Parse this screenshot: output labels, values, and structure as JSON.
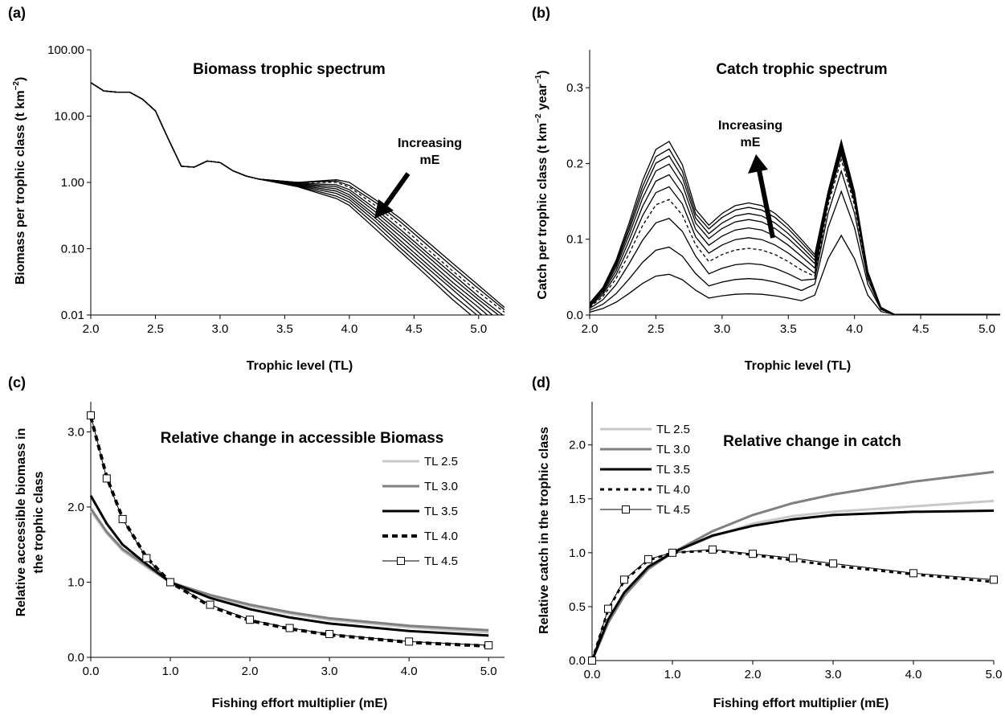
{
  "panels": {
    "a": {
      "label": "(a)",
      "chart_data": {
        "type": "line",
        "title": "Biomass trophic spectrum",
        "xlabel": "Trophic level (TL)",
        "ylabel_main": "Biomass per trophic class (t km",
        "ylabel_sup": "−2",
        "ylabel_end": ")",
        "yscale": "log",
        "xlim": [
          2.0,
          5.2
        ],
        "ylim": [
          0.01,
          100
        ],
        "xticks": [
          "2.0",
          "2.5",
          "3.0",
          "3.5",
          "4.0",
          "4.5",
          "5.0"
        ],
        "yticks": [
          "0.01",
          "0.10",
          "1.00",
          "10.00",
          "100.00"
        ],
        "annotation": [
          "Increasing",
          "mE"
        ],
        "shared_x": [
          2.0,
          2.1,
          2.2,
          2.3,
          2.4,
          2.5,
          2.6,
          2.7,
          2.8,
          2.9,
          3.0,
          3.1,
          3.2,
          3.3
        ],
        "shared_y": [
          32,
          24,
          23,
          23,
          18,
          12,
          4.5,
          1.75,
          1.7,
          2.1,
          2.0,
          1.5,
          1.25,
          1.12
        ],
        "tail_x": [
          3.3,
          3.6,
          3.9,
          4.0,
          4.2,
          4.4,
          4.6,
          4.8,
          5.0,
          5.2
        ],
        "curves": [
          [
            1.12,
            1.0,
            1.1,
            1.0,
            0.55,
            0.28,
            0.13,
            0.06,
            0.028,
            0.013
          ],
          [
            1.1,
            1.0,
            1.05,
            0.9,
            0.5,
            0.25,
            0.115,
            0.053,
            0.025,
            0.012
          ],
          [
            1.1,
            1.0,
            1.0,
            0.85,
            0.45,
            0.22,
            0.1,
            0.046,
            0.022,
            0.011
          ],
          [
            1.08,
            0.98,
            0.92,
            0.78,
            0.4,
            0.19,
            0.088,
            0.041,
            0.019,
            0.0095
          ],
          [
            1.07,
            0.96,
            0.86,
            0.72,
            0.36,
            0.17,
            0.078,
            0.036,
            0.017,
            0.0085
          ],
          [
            1.05,
            0.94,
            0.8,
            0.65,
            0.32,
            0.15,
            0.068,
            0.031,
            0.015,
            0.007
          ],
          [
            1.04,
            0.92,
            0.74,
            0.6,
            0.29,
            0.13,
            0.059,
            0.027,
            0.013,
            0.006
          ],
          [
            1.03,
            0.9,
            0.68,
            0.55,
            0.26,
            0.115,
            0.052,
            0.024,
            0.011,
            0.005
          ],
          [
            1.02,
            0.88,
            0.62,
            0.5,
            0.23,
            0.1,
            0.045,
            0.02,
            0.0095,
            0.0045
          ],
          [
            1.01,
            0.86,
            0.57,
            0.45,
            0.2,
            0.088,
            0.039,
            0.017,
            0.008,
            0.004
          ]
        ],
        "dashed_index": 2
      }
    },
    "b": {
      "label": "(b)",
      "chart_data": {
        "type": "line",
        "title": "Catch trophic spectrum",
        "xlabel": "Trophic level (TL)",
        "ylabel_main": "Catch per trophic class (t km",
        "ylabel_sup1": "−2",
        "ylabel_mid": " year",
        "ylabel_sup2": "−1",
        "ylabel_end": ")",
        "xlim": [
          2.0,
          5.1
        ],
        "ylim": [
          0,
          0.35
        ],
        "xticks": [
          "2.0",
          "2.5",
          "3.0",
          "3.5",
          "4.0",
          "4.5",
          "5.0"
        ],
        "yticks": [
          "0.0",
          "0.1",
          "0.2",
          "0.3"
        ],
        "annotation": [
          "Increasing",
          "mE"
        ],
        "x": [
          2.0,
          2.1,
          2.2,
          2.3,
          2.4,
          2.5,
          2.6,
          2.7,
          2.8,
          2.9,
          3.0,
          3.1,
          3.2,
          3.3,
          3.4,
          3.5,
          3.6,
          3.7,
          3.8,
          3.9,
          4.0,
          4.1,
          4.2,
          4.3,
          4.4,
          4.5,
          4.6,
          4.7,
          4.8,
          4.9,
          5.0,
          5.1
        ],
        "peaks": [
          {
            "p1": 0.054,
            "trough": 0.028,
            "p2": 0.105
          },
          {
            "p1": 0.09,
            "trough": 0.048,
            "p2": 0.163
          },
          {
            "p1": 0.128,
            "trough": 0.068,
            "p2": 0.19
          },
          {
            "p1": 0.153,
            "trough": 0.088,
            "p2": 0.205
          },
          {
            "p1": 0.17,
            "trough": 0.102,
            "p2": 0.212
          },
          {
            "p1": 0.186,
            "trough": 0.115,
            "p2": 0.216
          },
          {
            "p1": 0.2,
            "trough": 0.126,
            "p2": 0.22
          },
          {
            "p1": 0.211,
            "trough": 0.134,
            "p2": 0.223
          },
          {
            "p1": 0.22,
            "trough": 0.142,
            "p2": 0.226
          },
          {
            "p1": 0.23,
            "trough": 0.148,
            "p2": 0.23
          }
        ],
        "dashed_index": 3
      }
    },
    "c": {
      "label": "(c)",
      "chart_data": {
        "type": "line",
        "title": "Relative  change in accessible Biomass",
        "xlabel": "Fishing effort multiplier (mE)",
        "ylabel_line1": "Relative accessible biomass in",
        "ylabel_line2": "the trophic class",
        "xlim": [
          0,
          5.2
        ],
        "ylim": [
          0,
          3.4
        ],
        "xticks": [
          "0.0",
          "1.0",
          "2.0",
          "3.0",
          "4.0",
          "5.0"
        ],
        "yticks": [
          "0.0",
          "1.0",
          "2.0",
          "3.0"
        ],
        "x": [
          0,
          0.2,
          0.4,
          0.7,
          1.0,
          1.5,
          2.0,
          2.5,
          3.0,
          4.0,
          5.0
        ],
        "series": [
          {
            "name": "TL 2.5",
            "values": [
              1.95,
              1.65,
              1.42,
              1.2,
              1.0,
              0.82,
              0.68,
              0.58,
              0.5,
              0.4,
              0.33
            ],
            "color": "#c8c8c8",
            "width": 3,
            "dash": "",
            "marker": false
          },
          {
            "name": "TL 3.0",
            "values": [
              1.98,
              1.67,
              1.44,
              1.22,
              1.0,
              0.83,
              0.7,
              0.6,
              0.52,
              0.42,
              0.36
            ],
            "color": "#808080",
            "width": 3,
            "dash": "",
            "marker": false
          },
          {
            "name": "TL 3.5",
            "values": [
              2.15,
              1.78,
              1.5,
              1.24,
              1.0,
              0.79,
              0.64,
              0.53,
              0.45,
              0.35,
              0.29
            ],
            "color": "#000000",
            "width": 3,
            "dash": "",
            "marker": false
          },
          {
            "name": "TL 4.0",
            "values": [
              3.2,
              2.4,
              1.85,
              1.33,
              1.0,
              0.68,
              0.49,
              0.38,
              0.3,
              0.2,
              0.15
            ],
            "color": "#000000",
            "width": 4,
            "dash": "7,5",
            "marker": false
          },
          {
            "name": "TL 4.5",
            "values": [
              3.22,
              2.38,
              1.84,
              1.32,
              1.0,
              0.7,
              0.5,
              0.39,
              0.31,
              0.21,
              0.16
            ],
            "color": "#000000",
            "width": 1,
            "dash": "",
            "marker": true
          }
        ]
      }
    },
    "d": {
      "label": "(d)",
      "chart_data": {
        "type": "line",
        "title": "Relative change in catch",
        "xlabel": "Fishing effort multiplier (mE)",
        "ylabel": "Relative catch in the trophic class",
        "xlim": [
          0,
          5.0
        ],
        "ylim": [
          0,
          2.4
        ],
        "xticks": [
          "0.0",
          "1.0",
          "2.0",
          "3.0",
          "4.0",
          "5.0"
        ],
        "yticks": [
          "0.0",
          "0.5",
          "1.0",
          "1.5",
          "2.0"
        ],
        "x": [
          0,
          0.2,
          0.4,
          0.7,
          1.0,
          1.5,
          2.0,
          2.5,
          3.0,
          4.0,
          5.0
        ],
        "series": [
          {
            "name": "TL 2.5",
            "values": [
              0,
              0.35,
              0.6,
              0.85,
              1.0,
              1.15,
              1.27,
              1.34,
              1.38,
              1.43,
              1.48
            ],
            "color": "#c8c8c8",
            "width": 3,
            "dash": "",
            "marker": false
          },
          {
            "name": "TL 3.0",
            "values": [
              0,
              0.35,
              0.6,
              0.85,
              1.0,
              1.2,
              1.35,
              1.46,
              1.54,
              1.66,
              1.75
            ],
            "color": "#808080",
            "width": 3,
            "dash": "",
            "marker": false
          },
          {
            "name": "TL 3.5",
            "values": [
              0,
              0.38,
              0.63,
              0.87,
              1.0,
              1.16,
              1.25,
              1.31,
              1.35,
              1.38,
              1.39
            ],
            "color": "#000000",
            "width": 3,
            "dash": "",
            "marker": false
          },
          {
            "name": "TL 4.0",
            "values": [
              0,
              0.47,
              0.74,
              0.93,
              1.0,
              1.02,
              0.98,
              0.93,
              0.88,
              0.8,
              0.73
            ],
            "color": "#000000",
            "width": 3,
            "dash": "5,5",
            "marker": false
          },
          {
            "name": "TL 4.5",
            "values": [
              0,
              0.48,
              0.75,
              0.94,
              1.0,
              1.03,
              0.99,
              0.95,
              0.9,
              0.81,
              0.75
            ],
            "color": "#000000",
            "width": 1,
            "dash": "",
            "marker": true
          }
        ]
      }
    }
  }
}
